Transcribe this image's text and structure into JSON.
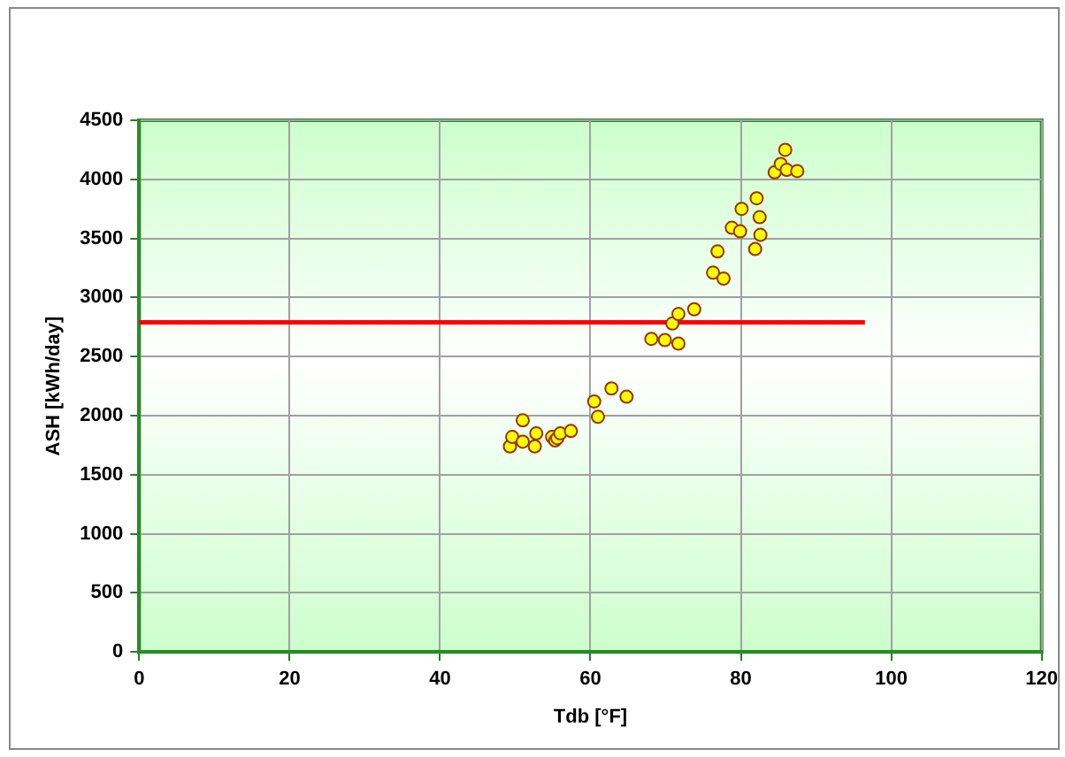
{
  "chart_data": {
    "type": "scatter",
    "xlabel": "Tdb [°F]",
    "ylabel": "ASH [kWh/day]",
    "xlim": [
      0,
      120
    ],
    "xticks": [
      0,
      20,
      40,
      60,
      80,
      100,
      120
    ],
    "ylim": [
      0,
      4500
    ],
    "yticks": [
      0,
      500,
      1000,
      1500,
      2000,
      2500,
      3000,
      3500,
      4000,
      4500
    ],
    "grid": true,
    "legend": false,
    "marker": "circle",
    "series": [
      {
        "color": "#ffff00",
        "x": [
          49.3,
          49.6,
          51.0,
          51.0,
          52.8,
          52.6,
          54.9,
          55.3,
          55.6,
          56.0,
          57.4,
          60.5,
          61.0,
          62.8,
          64.8,
          68.1,
          69.9,
          71.7,
          70.9,
          71.7,
          73.8,
          76.3,
          77.7,
          76.9,
          78.8,
          79.9,
          80.1,
          82.1,
          82.5,
          82.6,
          81.9,
          84.5,
          85.3,
          85.9,
          86.1,
          87.5
        ],
        "values": [
          1740,
          1820,
          1960,
          1780,
          1850,
          1740,
          1820,
          1790,
          1810,
          1850,
          1870,
          2120,
          1990,
          2230,
          2160,
          2650,
          2640,
          2610,
          2780,
          2860,
          2900,
          3210,
          3160,
          3390,
          3590,
          3560,
          3750,
          3840,
          3680,
          3530,
          3410,
          4060,
          4130,
          4250,
          4080,
          4070
        ]
      },
      {
        "type": "line",
        "color": "#ff0000",
        "marker": "none",
        "x": [
          0,
          96.5
        ],
        "values": [
          2790,
          2790
        ]
      }
    ]
  }
}
